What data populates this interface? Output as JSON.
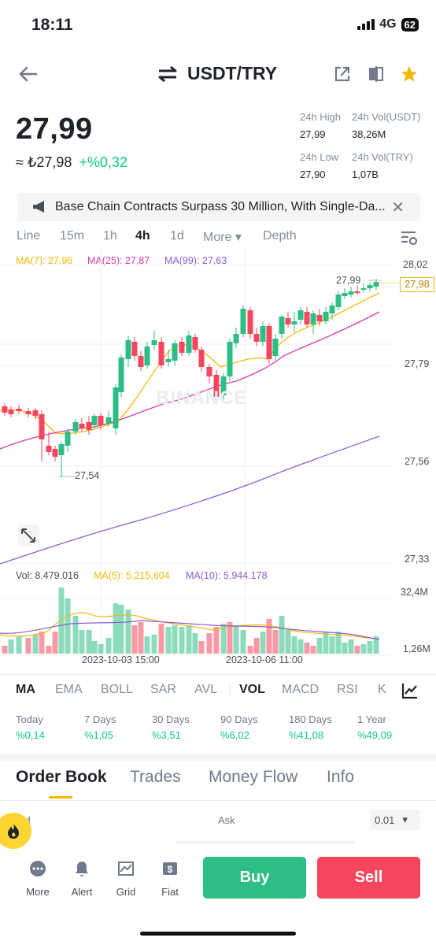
{
  "status": {
    "time": "18:11",
    "network": "4G",
    "battery": "62"
  },
  "header": {
    "pair": "USDT/TRY"
  },
  "ticker": {
    "last_price": "27,99",
    "fiat_price": "≈ ₺27,98",
    "change": "+%0,32",
    "high_label": "24h High",
    "high": "27,99",
    "vol_usdt_label": "24h Vol(USDT)",
    "vol_usdt": "38,26M",
    "low_label": "24h Low",
    "low": "27,90",
    "vol_try_label": "24h Vol(TRY)",
    "vol_try": "1,07B"
  },
  "banner": {
    "text": "Base Chain Contracts Surpass 30 Million, With Single-Da..."
  },
  "timeframes": [
    "Line",
    "15m",
    "1h",
    "4h",
    "1d",
    "More",
    "Depth"
  ],
  "active_timeframe": "4h",
  "chart": {
    "ma7": "MA(7): 27,96",
    "ma25": "MA(25): 27,87",
    "ma99": "MA(99): 27,63",
    "price_ticks": [
      "28,02",
      "27,79",
      "27,56",
      "27,33"
    ],
    "current_price_tag": "27,98",
    "high_marker": "27,99",
    "low_marker": "27,54",
    "watermark": "BINANCE",
    "vol_label": "Vol: 8.479.016",
    "vol_ma5": "MA(5): 5.215.604",
    "vol_ma10": "MA(10): 5.944.178",
    "vol_ticks": [
      "32,4M",
      "1,26M"
    ],
    "time_ticks": [
      "2023-10-03 15:00",
      "2023-10-06 11:00"
    ],
    "colors": {
      "up": "#2ebd85",
      "down": "#f6465d",
      "ma7": "#f0b90b",
      "ma25": "#d63ca8",
      "ma99": "#8f5ccf"
    }
  },
  "indicators": [
    "MA",
    "EMA",
    "BOLL",
    "SAR",
    "AVL",
    "VOL",
    "MACD",
    "RSI",
    "K"
  ],
  "performance": [
    {
      "label": "Today",
      "value": "%0,14"
    },
    {
      "label": "7 Days",
      "value": "%1,05"
    },
    {
      "label": "30 Days",
      "value": "%3,51"
    },
    {
      "label": "90 Days",
      "value": "%6,02"
    },
    {
      "label": "180 Days",
      "value": "%41,08"
    },
    {
      "label": "1 Year",
      "value": "%49,09"
    }
  ],
  "tabs": [
    "Order Book",
    "Trades",
    "Money Flow",
    "Info"
  ],
  "orderbook": {
    "bid": "Bid",
    "ask": "Ask",
    "precision": "0.01"
  },
  "nav": [
    "More",
    "Alert",
    "Grid",
    "Fiat"
  ],
  "buttons": {
    "buy": "Buy",
    "sell": "Sell"
  }
}
